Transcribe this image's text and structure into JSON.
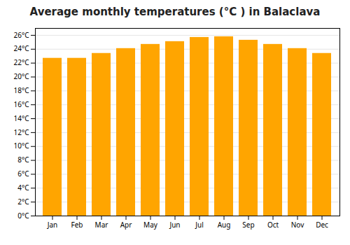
{
  "chart_data": {
    "type": "bar",
    "title": "Average monthly temperatures (°C ) in Balaclava",
    "categories": [
      "Jan",
      "Feb",
      "Mar",
      "Apr",
      "May",
      "Jun",
      "Jul",
      "Aug",
      "Sep",
      "Oct",
      "Nov",
      "Dec"
    ],
    "values": [
      22.7,
      22.7,
      23.4,
      24.1,
      24.7,
      25.1,
      25.7,
      25.8,
      25.3,
      24.7,
      24.1,
      23.4
    ],
    "color": "#FFA500",
    "ylim": [
      0,
      27
    ],
    "yticks": [
      {
        "value": 0,
        "label": "0°C"
      },
      {
        "value": 2,
        "label": "2°C"
      },
      {
        "value": 4,
        "label": "4°C"
      },
      {
        "value": 6,
        "label": "6°C"
      },
      {
        "value": 8,
        "label": "8°C"
      },
      {
        "value": 10,
        "label": "10°C"
      },
      {
        "value": 12,
        "label": "12°C"
      },
      {
        "value": 14,
        "label": "14°C"
      },
      {
        "value": 16,
        "label": "16°C"
      },
      {
        "value": 18,
        "label": "18°C"
      },
      {
        "value": 20,
        "label": "20°C"
      },
      {
        "value": 22,
        "label": "22°C"
      },
      {
        "value": 24,
        "label": "24°C"
      },
      {
        "value": 26,
        "label": "26°C"
      }
    ],
    "grid": true
  }
}
